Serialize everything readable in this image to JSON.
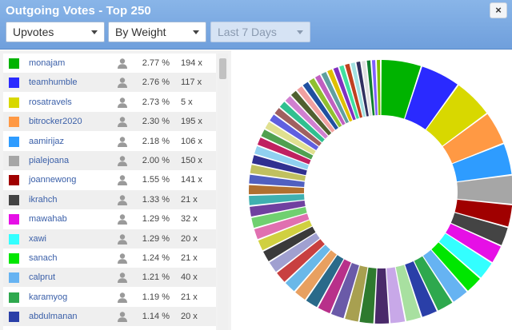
{
  "window": {
    "title": "Outgoing Votes - Top 250",
    "close_label": "×"
  },
  "filters": {
    "type": {
      "value": "Upvotes"
    },
    "sort": {
      "value": "By Weight"
    },
    "period": {
      "value": "Last 7 Days",
      "disabled": true
    }
  },
  "icons": {
    "user": "user-icon",
    "close": "close-icon",
    "dropdown": "chevron-down-icon"
  },
  "voters": [
    {
      "name": "monajam",
      "percent": "2.77 %",
      "count": "194 x",
      "color": "#00b300"
    },
    {
      "name": "teamhumble",
      "percent": "2.76 %",
      "count": "117 x",
      "color": "#2a2aff"
    },
    {
      "name": "rosatravels",
      "percent": "2.73 %",
      "count": "5 x",
      "color": "#d8d800"
    },
    {
      "name": "bitrocker2020",
      "percent": "2.30 %",
      "count": "195 x",
      "color": "#ff9944"
    },
    {
      "name": "aamirijaz",
      "percent": "2.18 %",
      "count": "106 x",
      "color": "#2e9cff"
    },
    {
      "name": "pialejoana",
      "percent": "2.00 %",
      "count": "150 x",
      "color": "#a6a6a6"
    },
    {
      "name": "joannewong",
      "percent": "1.55 %",
      "count": "141 x",
      "color": "#a00000"
    },
    {
      "name": "ikrahch",
      "percent": "1.33 %",
      "count": "21 x",
      "color": "#444444"
    },
    {
      "name": "mawahab",
      "percent": "1.29 %",
      "count": "32 x",
      "color": "#e60fe6"
    },
    {
      "name": "xawi",
      "percent": "1.29 %",
      "count": "20 x",
      "color": "#33ffff"
    },
    {
      "name": "sanach",
      "percent": "1.24 %",
      "count": "21 x",
      "color": "#00e600"
    },
    {
      "name": "calprut",
      "percent": "1.21 %",
      "count": "40 x",
      "color": "#66b3f2"
    },
    {
      "name": "karamyog",
      "percent": "1.19 %",
      "count": "21 x",
      "color": "#2ea84e"
    },
    {
      "name": "abdulmanan",
      "percent": "1.14 %",
      "count": "20 x",
      "color": "#2a3fa8"
    }
  ],
  "chart_data": {
    "type": "pie",
    "style": "donut",
    "visible_categories": [
      "monajam",
      "teamhumble",
      "rosatravels",
      "bitrocker2020",
      "aamirijaz",
      "pialejoana",
      "joannewong",
      "ikrahch",
      "mawahab",
      "xawi",
      "sanach",
      "calprut",
      "karamyog",
      "abdulmanan"
    ],
    "values": [
      2.77,
      2.76,
      2.73,
      2.3,
      2.18,
      2.0,
      1.55,
      1.33,
      1.29,
      1.29,
      1.24,
      1.21,
      1.19,
      1.14
    ],
    "colors": [
      "#00b300",
      "#2a2aff",
      "#d8d800",
      "#ff9944",
      "#2e9cff",
      "#a6a6a6",
      "#a00000",
      "#444444",
      "#e60fe6",
      "#33ffff",
      "#00e600",
      "#66b3f2",
      "#2ea84e",
      "#2a3fa8"
    ],
    "additional_slice_values": [
      1.1,
      1.08,
      1.05,
      1.03,
      1.0,
      0.98,
      0.96,
      0.94,
      0.92,
      0.9,
      0.88,
      0.86,
      0.84,
      0.82,
      0.8,
      0.78,
      0.76,
      0.74,
      0.72,
      0.7,
      0.68,
      0.66,
      0.64,
      0.62,
      0.6,
      0.6,
      0.58,
      0.56,
      0.55,
      0.54,
      0.52,
      0.5,
      0.5,
      0.48,
      0.46,
      0.45,
      0.44,
      0.42,
      0.4,
      0.4,
      0.38,
      0.36,
      0.35,
      0.34,
      0.33,
      0.32
    ],
    "additional_slice_colors": [
      "#a8e0a0",
      "#c8a8e8",
      "#4a2a6a",
      "#2e7a2e",
      "#a8a050",
      "#6a5aa8",
      "#b8308a",
      "#2a6a8a",
      "#e8a060",
      "#6ab8e8",
      "#c84040",
      "#a0a0d0",
      "#3a3a3a",
      "#d0d040",
      "#e070b0",
      "#70d070",
      "#7040a0",
      "#40b0b0",
      "#b07030",
      "#5060c0",
      "#c0c060",
      "#303090",
      "#90d0f0",
      "#c02060",
      "#50a050",
      "#e0e090",
      "#6060e0",
      "#a06060",
      "#30c090",
      "#d080d0",
      "#506030",
      "#f0a0a0",
      "#2050a0",
      "#90c030",
      "#c060c0",
      "#60a0a0",
      "#e0c000",
      "#8030c0",
      "#40e0a0",
      "#c04020",
      "#a0e0e0",
      "#303060",
      "#e0e0e0",
      "#108030",
      "#8060ff",
      "#80c000"
    ]
  }
}
